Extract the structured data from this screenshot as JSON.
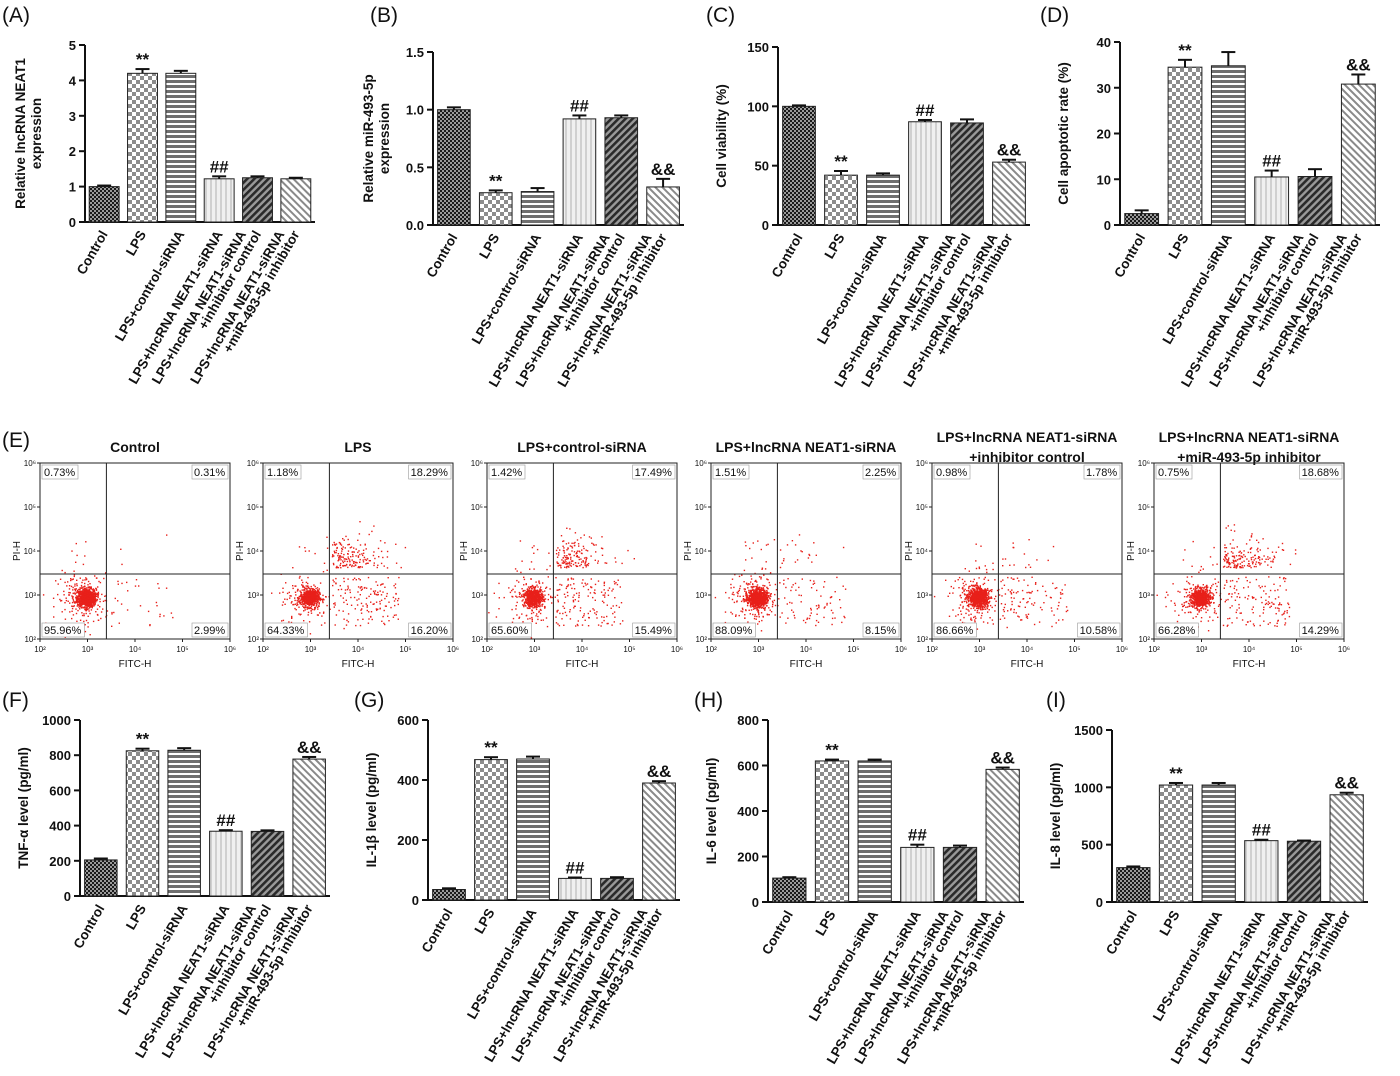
{
  "groups": [
    "Control",
    "LPS",
    "LPS+control-siRNA",
    "LPS+lncRNA NEAT1-siRNA",
    "LPS+lncRNA NEAT1-siRNA\n+inhibitor control",
    "LPS+lncRNA NEAT1-siRNA\n+miR-493-5p inhibitor"
  ],
  "colors": {
    "bar_dark": "#2e2e2e",
    "bar_gray": "#7a7a7a",
    "bar_light": "#dcdcdc",
    "bar_mid": "#b5b5b5",
    "dot": "#e8201a",
    "text": "#111111"
  },
  "chart_data": [
    {
      "type": "bar",
      "panel": "(A)",
      "ylabel": "Relative lncRNA NEAT1\nexpression",
      "ylim": [
        0,
        5
      ],
      "yticks": [
        0,
        1,
        2,
        3,
        4,
        5
      ],
      "values": [
        1.0,
        4.2,
        4.2,
        1.22,
        1.25,
        1.22
      ],
      "errors": [
        0.03,
        0.12,
        0.07,
        0.07,
        0.04,
        0.03
      ],
      "annotations": [
        "",
        "**",
        "",
        "##",
        "",
        ""
      ]
    },
    {
      "type": "bar",
      "panel": "(B)",
      "ylabel": "Relative miR-493-5p\nexpression",
      "ylim": [
        0,
        1.5
      ],
      "yticks": [
        0.0,
        0.5,
        1.0,
        1.5
      ],
      "values": [
        1.0,
        0.28,
        0.29,
        0.92,
        0.93,
        0.33
      ],
      "errors": [
        0.02,
        0.02,
        0.03,
        0.03,
        0.02,
        0.07
      ],
      "annotations": [
        "",
        "**",
        "",
        "##",
        "",
        "&&"
      ]
    },
    {
      "type": "bar",
      "panel": "(C)",
      "ylabel": "Cell viability (%)",
      "ylim": [
        0,
        150
      ],
      "yticks": [
        0,
        50,
        100,
        150
      ],
      "values": [
        100,
        42,
        42,
        87,
        86,
        53
      ],
      "errors": [
        0.8,
        3.5,
        1.5,
        1.5,
        3,
        2
      ],
      "annotations": [
        "",
        "**",
        "",
        "##",
        "",
        "&&"
      ]
    },
    {
      "type": "bar",
      "panel": "(D)",
      "ylabel": "Cell apoptotic rate (%)",
      "ylim": [
        0,
        40
      ],
      "yticks": [
        0,
        10,
        20,
        30,
        40
      ],
      "values": [
        2.5,
        34.5,
        34.8,
        10.5,
        10.6,
        30.8
      ],
      "errors": [
        0.7,
        1.6,
        3.0,
        1.4,
        1.6,
        2.1
      ],
      "annotations": [
        "",
        "**",
        "",
        "##",
        "",
        "&&"
      ]
    },
    {
      "type": "bar",
      "panel": "(F)",
      "ylabel": "TNF-α level (pg/ml)",
      "ylim": [
        0,
        1000
      ],
      "yticks": [
        0,
        200,
        400,
        600,
        800,
        1000
      ],
      "values": [
        205,
        825,
        828,
        368,
        367,
        778
      ],
      "errors": [
        8,
        12,
        12,
        6,
        6,
        12
      ],
      "annotations": [
        "",
        "**",
        "",
        "##",
        "",
        "&&"
      ]
    },
    {
      "type": "bar",
      "panel": "(G)",
      "ylabel": "IL-1β level (pg/ml)",
      "ylim": [
        0,
        600
      ],
      "yticks": [
        0,
        200,
        400,
        600
      ],
      "values": [
        35,
        468,
        470,
        72,
        72,
        390
      ],
      "errors": [
        4,
        8,
        8,
        3,
        4,
        6
      ],
      "annotations": [
        "",
        "**",
        "",
        "##",
        "",
        "&&"
      ]
    },
    {
      "type": "bar",
      "panel": "(H)",
      "ylabel": "IL-6 level (pg/ml)",
      "ylim": [
        0,
        800
      ],
      "yticks": [
        0,
        200,
        400,
        600,
        800
      ],
      "values": [
        105,
        620,
        620,
        240,
        240,
        583
      ],
      "errors": [
        4,
        6,
        6,
        12,
        8,
        8
      ],
      "annotations": [
        "",
        "**",
        "",
        "##",
        "",
        "&&"
      ]
    },
    {
      "type": "bar",
      "panel": "(I)",
      "ylabel": "IL-8 level (pg/ml)",
      "ylim": [
        0,
        1500
      ],
      "yticks": [
        0,
        500,
        1000,
        1500
      ],
      "values": [
        300,
        1020,
        1020,
        535,
        530,
        935
      ],
      "errors": [
        10,
        18,
        18,
        8,
        6,
        18
      ],
      "annotations": [
        "",
        "**",
        "",
        "##",
        "",
        "&&"
      ]
    },
    {
      "type": "scatter",
      "panel": "(E)",
      "xlabel": "FITC-H",
      "ylabel": "PI-H",
      "titles": [
        "Control",
        "LPS",
        "LPS+control-siRNA",
        "LPS+lncRNA NEAT1-siRNA",
        "LPS+lncRNA NEAT1-siRNA\n+inhibitor control",
        "LPS+lncRNA NEAT1-siRNA\n+miR-493-5p inhibitor"
      ],
      "quadrants": [
        {
          "ul": "0.73%",
          "ur": "0.31%",
          "ll": "95.96%",
          "lr": "2.99%"
        },
        {
          "ul": "1.18%",
          "ur": "18.29%",
          "ll": "64.33%",
          "lr": "16.20%"
        },
        {
          "ul": "1.42%",
          "ur": "17.49%",
          "ll": "65.60%",
          "lr": "15.49%"
        },
        {
          "ul": "1.51%",
          "ur": "2.25%",
          "ll": "88.09%",
          "lr": "8.15%"
        },
        {
          "ul": "0.98%",
          "ur": "1.78%",
          "ll": "86.66%",
          "lr": "10.58%"
        },
        {
          "ul": "0.75%",
          "ur": "18.68%",
          "ll": "66.28%",
          "lr": "14.29%"
        }
      ],
      "log_ticks": [
        "10²",
        "10³",
        "10⁴",
        "10⁵",
        "10⁶"
      ],
      "xlim": [
        100,
        1000000
      ],
      "ylim": [
        100,
        1000000
      ]
    }
  ]
}
